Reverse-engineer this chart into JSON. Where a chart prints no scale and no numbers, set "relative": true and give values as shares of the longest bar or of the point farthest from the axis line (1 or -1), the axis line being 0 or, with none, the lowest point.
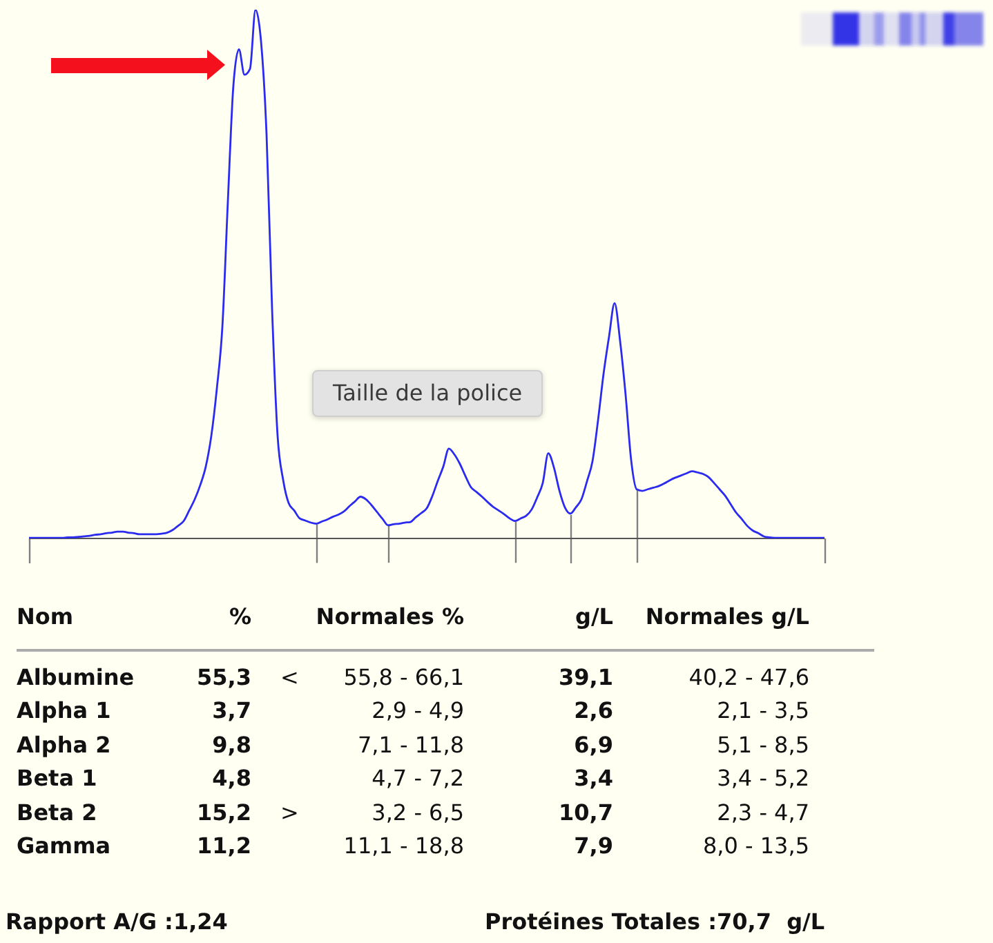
{
  "chart_data": [
    {
      "type": "line",
      "relative": true,
      "color": "#2b2bef",
      "marker": "none",
      "categories": [
        null,
        null,
        null,
        null,
        null,
        null,
        null,
        null,
        null,
        null,
        null,
        null,
        null,
        null,
        null,
        null,
        null,
        null,
        null,
        null,
        null,
        null,
        null,
        null,
        null,
        null,
        null,
        null,
        null,
        null,
        null,
        null,
        null,
        null,
        null,
        null,
        null,
        null,
        null,
        null,
        null,
        null,
        null,
        null,
        null,
        null,
        null,
        null,
        null,
        null,
        null,
        null,
        null,
        null,
        null,
        null,
        null,
        null,
        null,
        null,
        null,
        null,
        null,
        null,
        null,
        null,
        null,
        null,
        null,
        null,
        null,
        null,
        null,
        null,
        null,
        null,
        null,
        null,
        null,
        null,
        null,
        null,
        null,
        null,
        null,
        null,
        null,
        null,
        null,
        null,
        null,
        null,
        null,
        null,
        null,
        null,
        null,
        null,
        null,
        null,
        null,
        null,
        null,
        null,
        null,
        null,
        null,
        null,
        null,
        null,
        null,
        null,
        null,
        null,
        null,
        null,
        null,
        null,
        null,
        null,
        null,
        null,
        null,
        null,
        null,
        null,
        null,
        null,
        null,
        null,
        null,
        null,
        null,
        null,
        null,
        null,
        null,
        null,
        null,
        null,
        null,
        null,
        null,
        null,
        null
      ],
      "values": [
        0.001,
        0.001,
        0.001,
        0.001,
        0.001,
        0.001,
        0.001,
        0.002,
        0.002,
        0.003,
        0.004,
        0.005,
        0.007,
        0.008,
        0.01,
        0.011,
        0.013,
        0.013,
        0.011,
        0.01,
        0.008,
        0.008,
        0.008,
        0.008,
        0.009,
        0.011,
        0.016,
        0.024,
        0.033,
        0.053,
        0.074,
        0.101,
        0.136,
        0.194,
        0.283,
        0.4,
        0.638,
        0.857,
        0.925,
        0.877,
        0.888,
        1,
        0.94,
        0.764,
        0.434,
        0.194,
        0.111,
        0.067,
        0.053,
        0.038,
        0.034,
        0.03,
        0.028,
        0.032,
        0.036,
        0.041,
        0.045,
        0.051,
        0.061,
        0.07,
        0.079,
        0.074,
        0.063,
        0.05,
        0.037,
        0.025,
        0.027,
        0.028,
        0.03,
        0.031,
        0.04,
        0.048,
        0.057,
        0.08,
        0.109,
        0.136,
        0.17,
        0.159,
        0.141,
        0.118,
        0.097,
        0.088,
        0.079,
        0.069,
        0.06,
        0.053,
        0.046,
        0.038,
        0.033,
        0.038,
        0.043,
        0.055,
        0.078,
        0.105,
        0.161,
        0.135,
        0.091,
        0.059,
        0.047,
        0.059,
        0.074,
        0.108,
        0.146,
        0.223,
        0.311,
        0.382,
        0.445,
        0.373,
        0.271,
        0.148,
        0.093,
        0.09,
        0.093,
        0.096,
        0.099,
        0.104,
        0.11,
        0.115,
        0.119,
        0.123,
        0.127,
        0.125,
        0.122,
        0.116,
        0.105,
        0.093,
        0.081,
        0.065,
        0.049,
        0.037,
        0.024,
        0.015,
        0.01,
        0.004,
        0.002,
        0.001,
        0.001,
        0.001,
        0.001,
        0.001,
        0.001,
        0.001,
        0.001,
        0.001,
        0.001
      ],
      "annotations": [
        "Taille de la police"
      ]
    },
    {
      "type": "other",
      "xlabel": "Nom",
      "categories": [
        "Albumine",
        "Alpha 1",
        "Alpha 2",
        "Beta 1",
        "Beta 2",
        "Gamma"
      ],
      "series": [
        {
          "name": "%",
          "values": [
            null,
            null,
            null,
            null,
            null,
            null
          ],
          "value_labels": [
            "55,3",
            "3,7",
            "9,8",
            "4,8",
            "15,2",
            "11,2"
          ]
        },
        {
          "values": [
            null,
            null,
            null,
            null,
            null,
            null
          ],
          "value_labels": [
            "<",
            null,
            null,
            null,
            ">",
            null
          ]
        },
        {
          "name": "Normales %",
          "values": [
            null,
            null,
            null,
            null,
            null,
            null
          ],
          "value_labels": [
            "55,8 - 66,1",
            "2,9 - 4,9",
            "7,1 - 11,8",
            "4,7 - 7,2",
            "3,2 - 6,5",
            "11,1 - 18,8"
          ]
        },
        {
          "name": "g/L",
          "values": [
            null,
            null,
            null,
            null,
            null,
            null
          ],
          "value_labels": [
            "39,1",
            "2,6",
            "6,9",
            "3,4",
            "10,7",
            "7,9"
          ]
        },
        {
          "name": "Normales g/L",
          "values": [
            null,
            null,
            null,
            null,
            null,
            null
          ],
          "value_labels": [
            "40,2 - 47,6",
            "2,1 - 3,5",
            "5,1 - 8,5",
            "3,4 - 5,2",
            "2,3 - 4,7",
            "8,0 - 13,5"
          ]
        }
      ],
      "annotations": [
        "Rapport A/G :1,24",
        "Protéines Totales :70,7  g/L"
      ]
    }
  ]
}
